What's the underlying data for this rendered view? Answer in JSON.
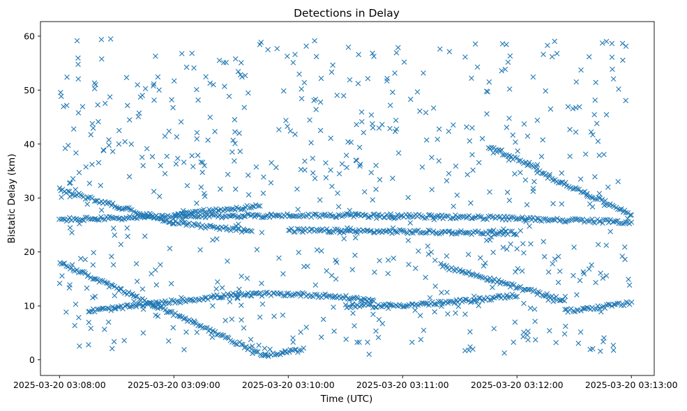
{
  "chart_data": {
    "type": "scatter",
    "title": "Detections in Delay",
    "xlabel": "Time (UTC)",
    "ylabel": "Bistatic Delay (km)",
    "marker": "x",
    "color": "#1f77b4",
    "grid": false,
    "xlim": [
      "2025-03-20 03:07:50",
      "2025-03-20 03:13:12"
    ],
    "ylim": [
      -2.9,
      62.7
    ],
    "x_ticks": [
      "2025-03-20 03:08:00",
      "2025-03-20 03:09:00",
      "2025-03-20 03:10:00",
      "2025-03-20 03:11:00",
      "2025-03-20 03:12:00",
      "2025-03-20 03:13:00"
    ],
    "y_ticks": [
      0,
      10,
      20,
      30,
      40,
      50,
      60
    ],
    "tracks": [
      {
        "t_start": "2025-03-20 03:08:00",
        "t_end": "2025-03-20 03:09:48",
        "delay_start": 18.0,
        "delay_end": 0.8,
        "curve": 0.0
      },
      {
        "t_start": "2025-03-20 03:09:48",
        "t_end": "2025-03-20 03:10:08",
        "delay_start": 0.8,
        "delay_end": 1.9,
        "curve": 0.0
      },
      {
        "t_start": "2025-03-20 03:08:00",
        "t_end": "2025-03-20 03:09:00",
        "delay_start": 31.5,
        "delay_end": 25.5,
        "curve": 0.0
      },
      {
        "t_start": "2025-03-20 03:09:00",
        "t_end": "2025-03-20 03:09:40",
        "delay_start": 25.5,
        "delay_end": 23.8,
        "curve": 0.0
      },
      {
        "t_start": "2025-03-20 03:08:00",
        "t_end": "2025-03-20 03:13:00",
        "delay_start": 26.0,
        "delay_end": 25.5,
        "curve": 0.5
      },
      {
        "t_start": "2025-03-20 03:08:15",
        "t_end": "2025-03-20 03:09:30",
        "delay_start": 9.0,
        "delay_end": 12.0,
        "curve": 0.0
      },
      {
        "t_start": "2025-03-20 03:09:30",
        "t_end": "2025-03-20 03:10:45",
        "delay_start": 12.0,
        "delay_end": 11.0,
        "curve": 0.3
      },
      {
        "t_start": "2025-03-20 03:10:30",
        "t_end": "2025-03-20 03:12:00",
        "delay_start": 10.0,
        "delay_end": 12.0,
        "curve": -0.3
      },
      {
        "t_start": "2025-03-20 03:11:45",
        "t_end": "2025-03-20 03:12:10",
        "delay_start": 39.5,
        "delay_end": 35.5,
        "curve": 0.0
      },
      {
        "t_start": "2025-03-20 03:12:10",
        "t_end": "2025-03-20 03:13:00",
        "delay_start": 35.0,
        "delay_end": 27.0,
        "curve": 0.0
      },
      {
        "t_start": "2025-03-20 03:11:20",
        "t_end": "2025-03-20 03:12:25",
        "delay_start": 17.5,
        "delay_end": 11.0,
        "curve": 0.0
      },
      {
        "t_start": "2025-03-20 03:12:25",
        "t_end": "2025-03-20 03:13:00",
        "delay_start": 9.0,
        "delay_end": 10.5,
        "curve": 0.0
      },
      {
        "t_start": "2025-03-20 03:09:00",
        "t_end": "2025-03-20 03:09:45",
        "delay_start": 27.0,
        "delay_end": 28.5,
        "curve": 0.0
      },
      {
        "t_start": "2025-03-20 03:10:00",
        "t_end": "2025-03-20 03:12:00",
        "delay_start": 24.0,
        "delay_end": 23.5,
        "curve": 0.0
      }
    ]
  }
}
